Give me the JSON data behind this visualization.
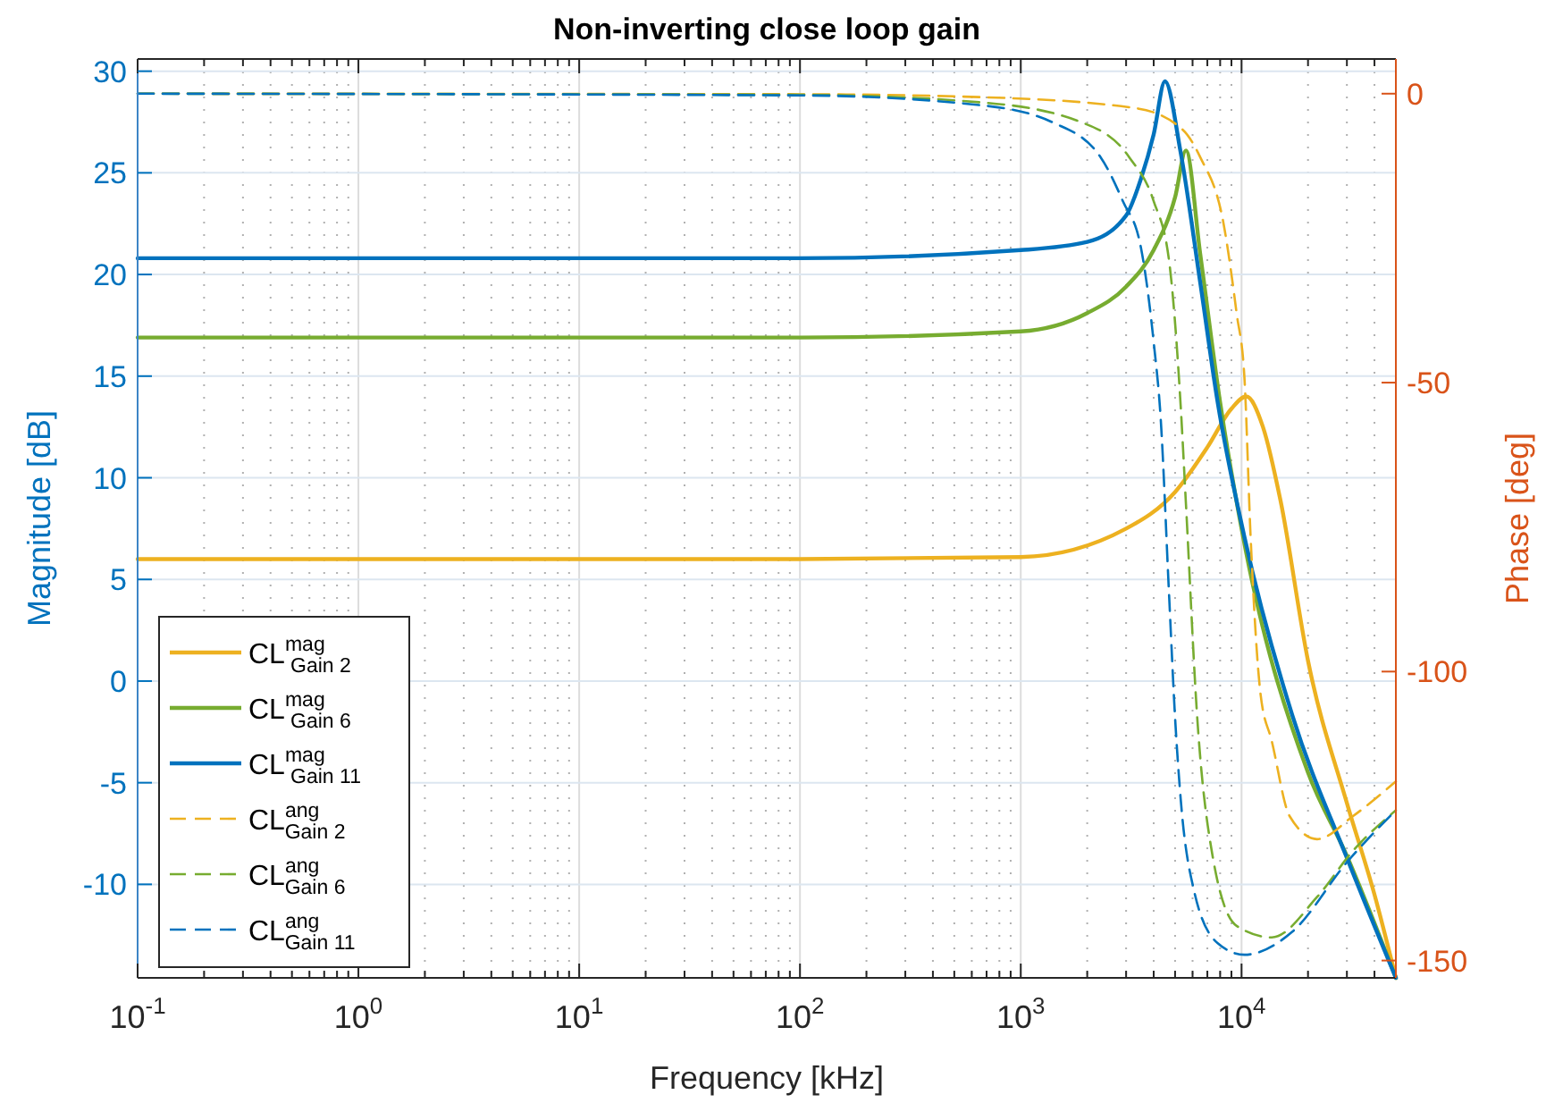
{
  "chart_data": {
    "type": "line",
    "title": "Non-inverting close loop gain",
    "xlabel": "Frequency [kHz]",
    "ylabel": "Magnitude [dB]",
    "y2label": "Phase [deg]",
    "log": "x",
    "grid": true,
    "legend": "bottom left",
    "line_style": "solid",
    "xlim": [
      0.1,
      50000
    ],
    "xticks": [
      {
        "value": 0.1,
        "label": "10$^{-1}$"
      },
      {
        "value": 1,
        "label": "10$^{0}$"
      },
      {
        "value": 10,
        "label": "10$^{1}$"
      },
      {
        "value": 100,
        "label": "10$^{2}$"
      },
      {
        "value": 1000,
        "label": "10$^{3}$"
      },
      {
        "value": 10000,
        "label": "10$^{4}$"
      }
    ],
    "ylim": [
      -14.6,
      30.6
    ],
    "yticks": [
      -10,
      -5,
      0,
      5,
      10,
      15,
      20,
      25,
      30
    ],
    "y2lim": [
      -153,
      6
    ],
    "y2ticks": [
      -150,
      -100,
      -50,
      0
    ],
    "series": [
      {
        "name": "CL$^{mag}$$_{Gain 2}$",
        "color": "#edb120",
        "x": [
          0.1,
          100,
          1000,
          3000,
          5000,
          7000,
          9000,
          10500,
          12500,
          15000,
          20000,
          30000,
          40000,
          50000
        ],
        "values": [
          6.0,
          6.0,
          6.1,
          7.5,
          9.3,
          11.5,
          13.4,
          14.0,
          12.5,
          8.9,
          1.0,
          -6.0,
          -10.5,
          -14.6
        ]
      },
      {
        "name": "CL$^{mag}$$_{Gain 6}$",
        "color": "#77ac30",
        "x": [
          0.1,
          100,
          1000,
          2000,
          3000,
          4000,
          5000,
          5600,
          6500,
          8000,
          10000,
          20000,
          30000,
          50000
        ],
        "values": [
          16.9,
          16.9,
          17.2,
          18.1,
          19.4,
          21.2,
          23.8,
          26.1,
          21.0,
          13.7,
          7.5,
          -4.5,
          -8.6,
          -14.6
        ]
      },
      {
        "name": "CL$^{mag}$$_{Gain 11}$",
        "color": "#0072bd",
        "x": [
          0.1,
          100,
          1000,
          2000,
          3000,
          3500,
          4000,
          4500,
          5300,
          6500,
          7800,
          10300,
          17000,
          30000,
          50000
        ],
        "values": [
          20.8,
          20.8,
          21.2,
          21.6,
          22.9,
          24.7,
          26.9,
          29.5,
          26.0,
          19.6,
          13.7,
          7.1,
          -1.7,
          -8.7,
          -14.6
        ]
      },
      {
        "name": "CL$^{ang}$$_{Gain 2}$",
        "color": "#edb120",
        "axis": "y2",
        "line_style": "dashed",
        "x": [
          0.1,
          100,
          660,
          3300,
          5400,
          6500,
          8300,
          9500,
          10300,
          11000,
          12200,
          13700,
          16500,
          22000,
          32000,
          50000
        ],
        "values": [
          0,
          -0.1,
          -0.6,
          -2.5,
          -6.2,
          -11,
          -22.6,
          -38,
          -49,
          -77,
          -104,
          -112,
          -125,
          -129,
          -125,
          -119
        ]
      },
      {
        "name": "CL$^{ang}$$_{Gain 6}$",
        "color": "#77ac30",
        "axis": "y2",
        "line_style": "dashed",
        "x": [
          0.1,
          100,
          660,
          1900,
          3100,
          4000,
          4700,
          5300,
          5600,
          6300,
          7400,
          9500,
          13700,
          22000,
          32000,
          50000
        ],
        "values": [
          0,
          -0.2,
          -1.5,
          -5,
          -11,
          -18.6,
          -29,
          -54,
          -71,
          -108,
          -132,
          -144,
          -146,
          -139,
          -131,
          -124
        ]
      },
      {
        "name": "CL$^{ang}$$_{Gain 11}$",
        "color": "#0072bd",
        "axis": "y2",
        "line_style": "dashed",
        "x": [
          0.1,
          100,
          660,
          1400,
          2300,
          2900,
          3500,
          4000,
          4300,
          4700,
          5000,
          5300,
          6100,
          7800,
          10300,
          17000,
          30000,
          50000
        ],
        "values": [
          0,
          -0.3,
          -2,
          -5,
          -11,
          -18.6,
          -26.6,
          -43,
          -56,
          -87,
          -108,
          -122,
          -138,
          -147,
          -149,
          -145,
          -133,
          -124
        ]
      }
    ]
  }
}
